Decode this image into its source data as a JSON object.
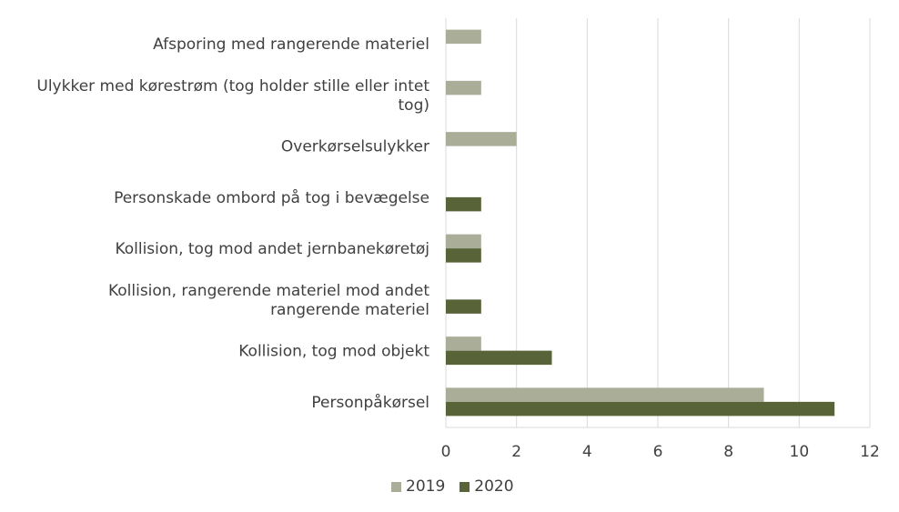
{
  "chart_data": {
    "type": "bar",
    "orientation": "horizontal",
    "categories": [
      [
        "Afsporing med rangerende materiel"
      ],
      [
        "Ulykker med kørestrøm (tog holder stille eller intet",
        "tog)"
      ],
      [
        "Overkørselsulykker"
      ],
      [
        "Personskade ombord på tog i bevægelse"
      ],
      [
        "Kollision, tog mod andet jernbanekøretøj"
      ],
      [
        "Kollision, rangerende materiel mod andet",
        "rangerende materiel"
      ],
      [
        "Kollision, tog mod objekt"
      ],
      [
        "Personpåkørsel"
      ]
    ],
    "series": [
      {
        "name": "2019",
        "color": "#aaae99",
        "values": [
          1,
          1,
          2,
          0,
          1,
          0,
          1,
          9
        ]
      },
      {
        "name": "2020",
        "color": "#586438",
        "values": [
          0,
          0,
          0,
          1,
          1,
          1,
          3,
          11
        ]
      }
    ],
    "xlim": [
      0,
      12
    ],
    "xticks": [
      0,
      2,
      4,
      6,
      8,
      10,
      12
    ],
    "grid": true,
    "legend_position": "bottom"
  }
}
